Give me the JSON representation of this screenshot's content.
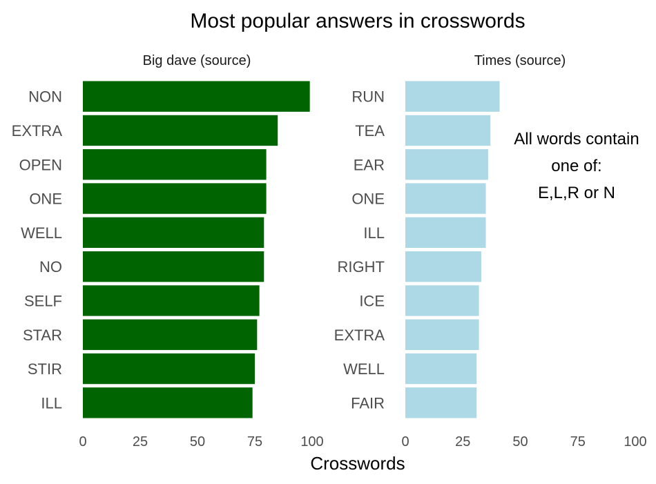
{
  "chart_data": {
    "type": "bar",
    "orientation": "horizontal",
    "title": "Most popular answers in crosswords",
    "xlabel": "Crosswords",
    "xlim": [
      0,
      100
    ],
    "xticks": [
      "0",
      "25",
      "50",
      "75",
      "100"
    ],
    "grid": false,
    "panels": [
      {
        "facet_label": "Big dave (source)",
        "color": "#006400",
        "categories": [
          "NON",
          "EXTRA",
          "OPEN",
          "ONE",
          "WELL",
          "NO",
          "SELF",
          "STAR",
          "STIR",
          "ILL"
        ],
        "values": [
          99,
          85,
          80,
          80,
          79,
          79,
          77,
          76,
          75,
          74
        ]
      },
      {
        "facet_label": "Times (source)",
        "color": "#add8e6",
        "categories": [
          "RUN",
          "TEA",
          "EAR",
          "ONE",
          "ILL",
          "RIGHT",
          "ICE",
          "EXTRA",
          "WELL",
          "FAIR"
        ],
        "values": [
          41,
          37,
          36,
          35,
          35,
          33,
          32,
          32,
          31,
          31
        ]
      }
    ],
    "annotation": [
      "All words contain",
      "one of:",
      "E,L,R or N"
    ]
  }
}
